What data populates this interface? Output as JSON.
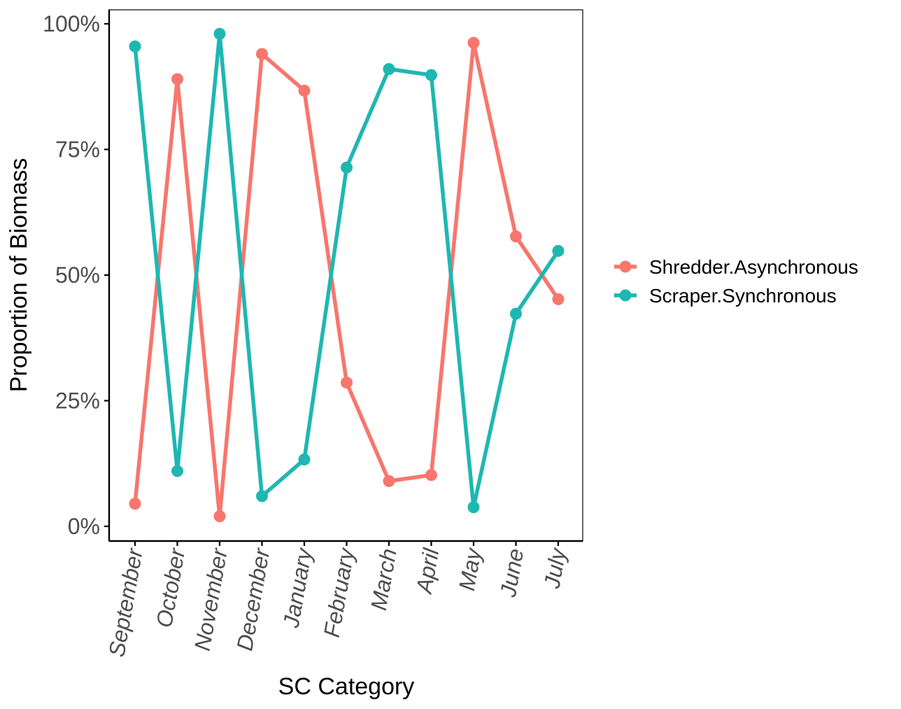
{
  "chart_data": {
    "type": "line",
    "categories": [
      "September",
      "October",
      "November",
      "December",
      "January",
      "February",
      "March",
      "April",
      "May",
      "June",
      "July"
    ],
    "series": [
      {
        "name": "Shredder.Asynchronous",
        "color": "#F8766D",
        "values": [
          0.045,
          0.89,
          0.02,
          0.94,
          0.867,
          0.286,
          0.09,
          0.102,
          0.962,
          0.577,
          0.452
        ]
      },
      {
        "name": "Scraper.Synchronous",
        "color": "#1FB7B2",
        "values": [
          0.955,
          0.11,
          0.98,
          0.06,
          0.133,
          0.714,
          0.91,
          0.898,
          0.038,
          0.423,
          0.548
        ]
      }
    ],
    "title": "",
    "xlabel": "SC Category",
    "ylabel": "Proportion of Biomass",
    "ylim": [
      0,
      1
    ],
    "yticks": [
      0,
      0.25,
      0.5,
      0.75,
      1
    ],
    "ytick_labels": [
      "0%",
      "25%",
      "50%",
      "75%",
      "100%"
    ],
    "x_tick_style": "italic, rotated 80°",
    "grid": false,
    "legend_position": "right"
  }
}
